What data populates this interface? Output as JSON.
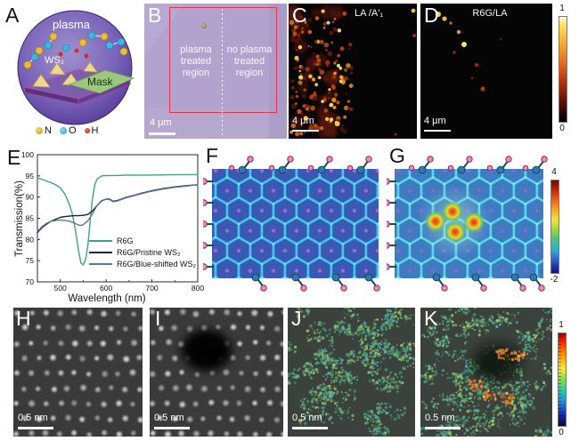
{
  "panels": {
    "A": {
      "label": "A",
      "plasma": "plasma",
      "ws2": "WS₂",
      "mask": "Mask",
      "legend": [
        {
          "name": "N",
          "color": "#dfb72c"
        },
        {
          "name": "O",
          "color": "#3cb4dc"
        },
        {
          "name": "H",
          "color": "#d93020"
        }
      ]
    },
    "B": {
      "label": "B",
      "left_region": "plasma treated region",
      "right_region": "no plasma treated region",
      "scalebar": "4 μm"
    },
    "C": {
      "label": "C",
      "title": "LA /A′₁",
      "scalebar": "4 μm"
    },
    "D": {
      "label": "D",
      "title": "R6G/LA",
      "scalebar": "4 μm",
      "colorbar_max": "1",
      "colorbar_min": "0"
    },
    "E": {
      "label": "E"
    },
    "F": {
      "label": "F"
    },
    "G": {
      "label": "G",
      "colorbar_max": "4",
      "colorbar_min": "-2"
    },
    "H": {
      "label": "H",
      "scalebar": "0.5 nm"
    },
    "I": {
      "label": "I",
      "scalebar": "0.5 nm"
    },
    "J": {
      "label": "J",
      "scalebar": "0.5 nm"
    },
    "K": {
      "label": "K",
      "scalebar": "0.5 nm",
      "colorbar_max": "1",
      "colorbar_min": "0"
    }
  },
  "chart_data": {
    "type": "line",
    "title": "",
    "xlabel": "Wavelength (nm)",
    "ylabel": "Transmission(%)",
    "xlim": [
      450,
      800
    ],
    "ylim": [
      70,
      100
    ],
    "xticks": [
      500,
      600,
      700,
      800
    ],
    "xticks_minor": [
      450,
      550,
      650,
      750
    ],
    "yticks": [
      70,
      75,
      80,
      85,
      90,
      95,
      100
    ],
    "grid": false,
    "legend_position": "lower right",
    "series": [
      {
        "name": "R6G",
        "color": "#3fa37d",
        "x": [
          450,
          460,
          470,
          480,
          490,
          500,
          510,
          520,
          525,
          530,
          535,
          540,
          545,
          550,
          555,
          560,
          565,
          570,
          575,
          580,
          590,
          600,
          620,
          650,
          700,
          750,
          800
        ],
        "y": [
          94.5,
          94.2,
          93.8,
          93.4,
          92.9,
          92.2,
          90.7,
          88.2,
          86.5,
          84.0,
          80.8,
          77.2,
          74.4,
          74.0,
          75.2,
          78.5,
          84.0,
          89.5,
          92.8,
          94.2,
          95.0,
          95.1,
          95.1,
          95.2,
          95.2,
          95.3,
          95.3
        ]
      },
      {
        "name": "R6G/Pristine WS₂",
        "color": "#18223f",
        "x": [
          450,
          460,
          470,
          480,
          490,
          500,
          510,
          520,
          530,
          540,
          550,
          560,
          570,
          580,
          590,
          600,
          608,
          615,
          625,
          640,
          660,
          680,
          700,
          725,
          750,
          775,
          800
        ],
        "y": [
          81.6,
          82.8,
          83.6,
          84.3,
          84.8,
          85.2,
          85.4,
          85.5,
          85.6,
          85.6,
          85.7,
          85.9,
          86.7,
          88.0,
          89.1,
          89.5,
          89.5,
          89.0,
          89.2,
          89.8,
          90.4,
          91.0,
          91.5,
          92.0,
          92.4,
          92.7,
          92.9
        ]
      },
      {
        "name": "R6G/Blue-shifted WS₂",
        "color": "#5b74a0",
        "x": [
          450,
          460,
          470,
          480,
          490,
          500,
          510,
          520,
          530,
          540,
          545,
          550,
          560,
          570,
          580,
          590,
          600,
          608,
          615,
          625,
          640,
          660,
          680,
          700,
          725,
          750,
          775,
          800
        ],
        "y": [
          81.9,
          83.0,
          83.8,
          84.3,
          84.5,
          84.6,
          84.5,
          84.3,
          83.9,
          83.4,
          83.3,
          83.5,
          84.4,
          86.0,
          88.0,
          89.2,
          89.5,
          89.4,
          88.9,
          89.1,
          89.7,
          90.3,
          90.9,
          91.4,
          91.9,
          92.3,
          92.6,
          92.9
        ]
      }
    ]
  }
}
